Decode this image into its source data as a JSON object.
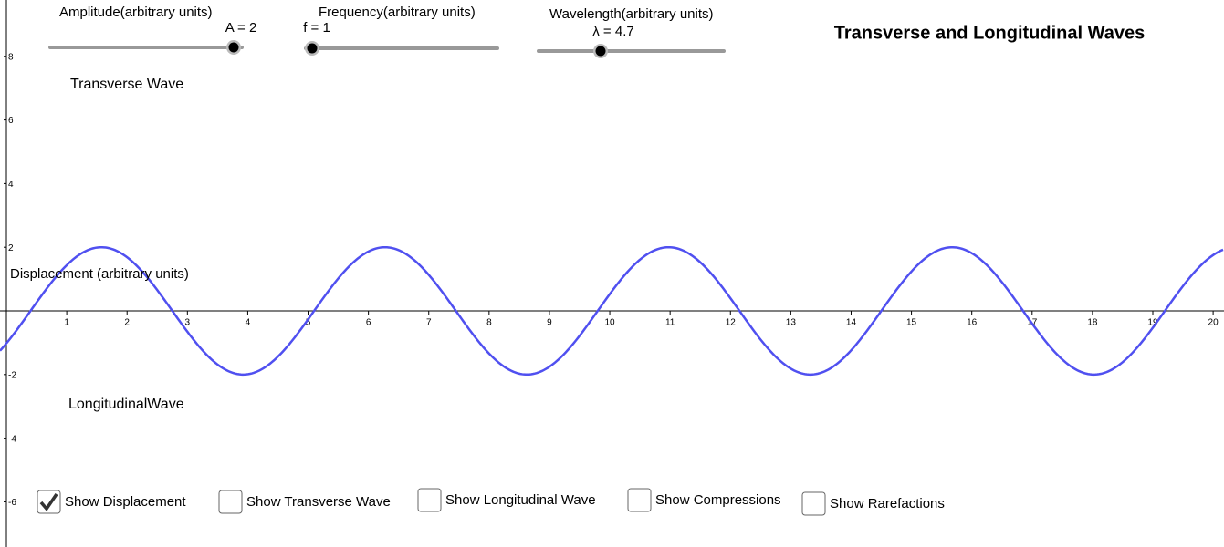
{
  "title": "Transverse and Longitudinal Waves",
  "sliders": [
    {
      "label": "Amplitude(arbitrary units)",
      "value_label": "A = 2",
      "value": 2
    },
    {
      "label": "Frequency(arbitrary units)",
      "value_label": "f = 1",
      "value": 1
    },
    {
      "label": "Wavelength(arbitrary units)",
      "value_label": "λ = 4.7",
      "value": 4.7
    }
  ],
  "graph": {
    "xlim": [
      -0.106,
      20.18
    ],
    "ylim": [
      -7.42,
      9.77
    ],
    "xticks": [
      1,
      2,
      3,
      4,
      5,
      6,
      7,
      8,
      9,
      10,
      11,
      12,
      13,
      14,
      15,
      16,
      17,
      18,
      19,
      20
    ],
    "yticks": [
      8,
      6,
      4,
      2,
      -2,
      -4,
      -6
    ],
    "labels": [
      "Transverse Wave",
      "Displacement (arbitrary units)",
      "LongitudinalWave"
    ],
    "curve_color": "#5050f0"
  },
  "checkboxes": [
    {
      "label": "Show Displacement",
      "checked": true
    },
    {
      "label": "Show Transverse Wave",
      "checked": false
    },
    {
      "label": "Show Longitudinal Wave",
      "checked": false
    },
    {
      "label": "Show Compressions",
      "checked": false
    },
    {
      "label": "Show Rarefactions",
      "checked": false
    }
  ]
}
